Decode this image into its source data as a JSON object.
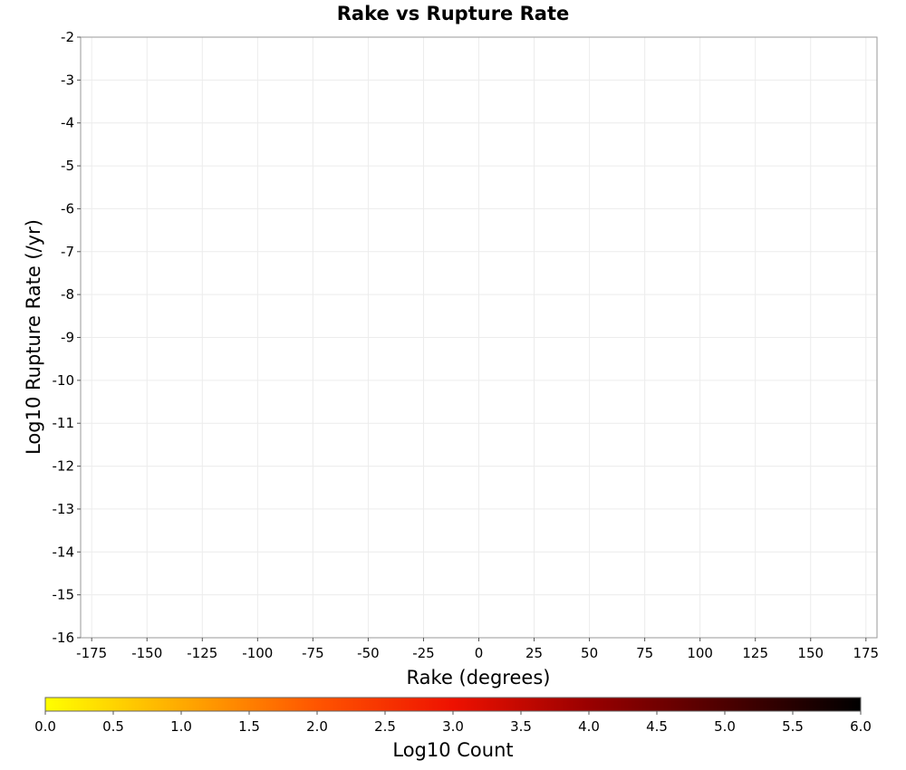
{
  "chart_data": {
    "type": "heatmap",
    "title": "Rake vs Rupture Rate",
    "xlabel": "Rake (degrees)",
    "ylabel": "Log10 Rupture Rate (/yr)",
    "xlim": [
      -180,
      180
    ],
    "ylim": [
      -16,
      -2
    ],
    "x_ticks": [
      "-175",
      "-150",
      "-125",
      "-100",
      "-75",
      "-50",
      "-25",
      "0",
      "25",
      "50",
      "75",
      "100",
      "125",
      "150",
      "175"
    ],
    "y_ticks": [
      "-2",
      "-3",
      "-4",
      "-5",
      "-6",
      "-7",
      "-8",
      "-9",
      "-10",
      "-11",
      "-12",
      "-13",
      "-14",
      "-15",
      "-16"
    ],
    "grid": true,
    "colorbar": {
      "label": "Log10 Count",
      "min": 0.0,
      "max": 6.0,
      "ticks": [
        "0.0",
        "0.5",
        "1.0",
        "1.5",
        "2.0",
        "2.5",
        "3.0",
        "3.5",
        "4.0",
        "4.5",
        "5.0",
        "5.5",
        "6.0"
      ],
      "colors": [
        "#ffff00",
        "#ffaa00",
        "#ff5500",
        "#ee1100",
        "#990000",
        "#000000"
      ]
    },
    "bin_width_x": 10,
    "bin_height_y": 0.5,
    "rows_from_y": -16,
    "first_bin_x": -165,
    "rows": [
      "0000000000000000000000000000000000000",
      "0000000000000000000000000000000000000",
      "0000000000000000000000000000000000000",
      "0000000000000000000000000000000000000",
      "0000000000000000000000000000000000000",
      "0000000000000000000000000000000000000",
      "0000000000000000000000000000000000000",
      "0000000000000000000000000000000000000",
      "0000000000000000000000000000000000000",
      "0000000000000000000000000000000000000",
      "0000000000000000000000000000000000000",
      "0000000000000000000000000000000000000",
      "0000000000000000000000000000000000000",
      "0000000000000000000000000000000000000",
      "0000000000000000000000000000000000000",
      "0000000000000000000000000000000000000",
      "0000000000000000000000000000000000000",
      "0000000000000000000000000000000000000",
      "0000000000000000000000000000000000000",
      "0000000000000000000000000000000000000",
      "0000000000000000000000000000000000000",
      "0000000000000000000000000000000000000",
      "0000000000000000000000000000000000000",
      "0000000000000000000000000000000000000",
      "0000000000000000000000000000000000000",
      "0000000000000000000000000000000000000",
      "0000000000000000000000000000000000000",
      "0000000000000000000000000000000000000"
    ]
  }
}
